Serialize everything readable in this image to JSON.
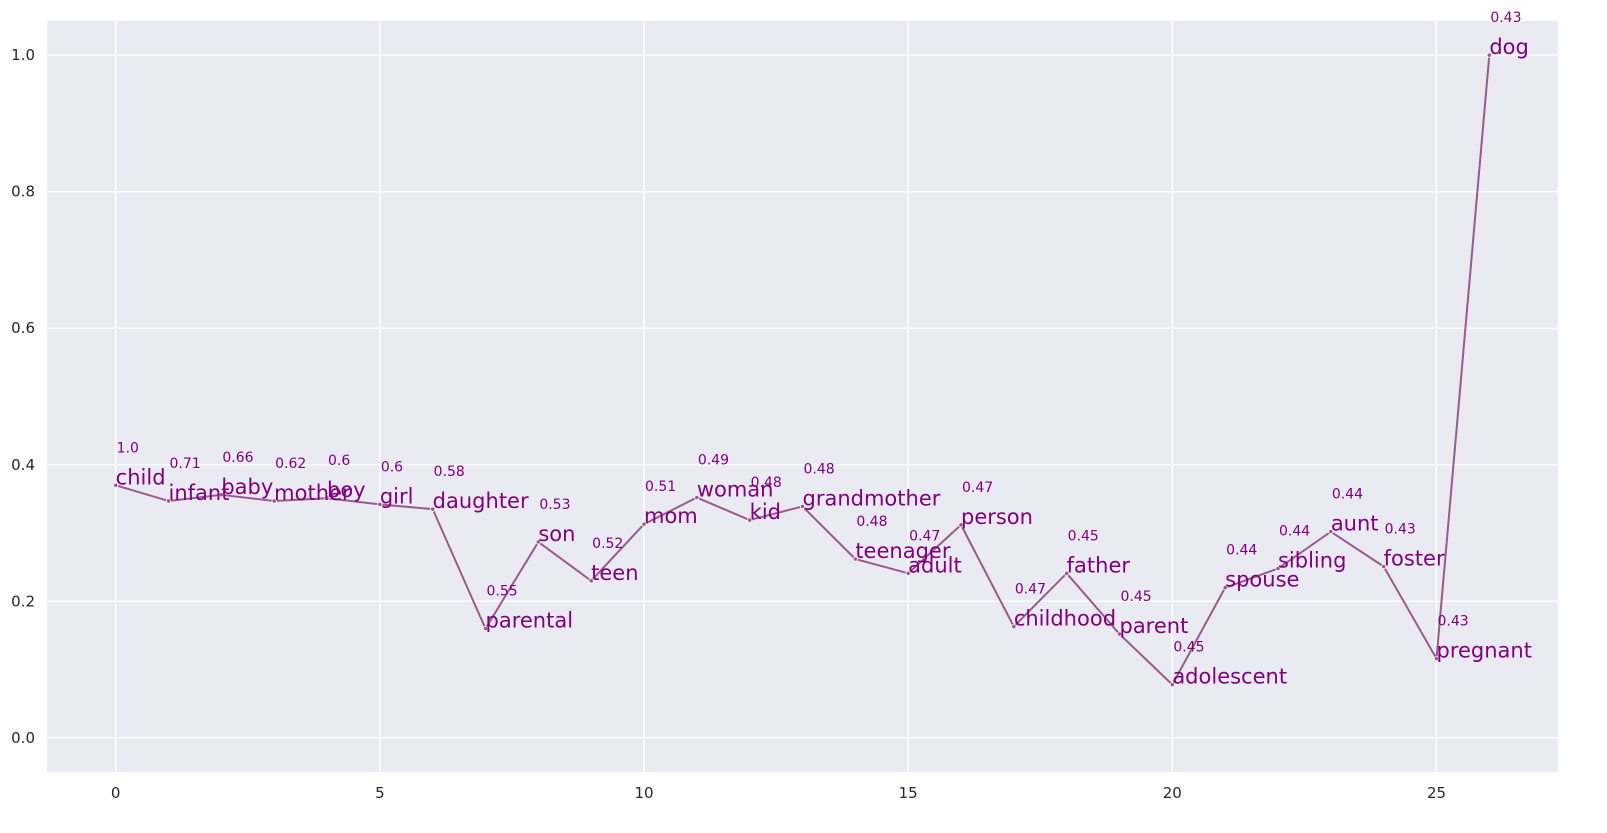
{
  "chart_data": {
    "type": "line",
    "title": "",
    "xlabel": "",
    "ylabel": "",
    "xlim": [
      -1.3,
      27.3
    ],
    "ylim": [
      -0.05,
      1.05
    ],
    "x_ticks": [
      0,
      5,
      10,
      15,
      20,
      25
    ],
    "y_ticks": [
      0.0,
      0.2,
      0.4,
      0.6,
      0.8,
      1.0
    ],
    "x_tick_labels": [
      "0",
      "5",
      "10",
      "15",
      "20",
      "25"
    ],
    "y_tick_labels": [
      "0.0",
      "0.2",
      "0.4",
      "0.6",
      "0.8",
      "1.0"
    ],
    "grid": true,
    "colors": {
      "background": "#eaeaf2",
      "grid": "#ffffff",
      "line": "#9a5a8e",
      "text": "#800080"
    },
    "points": [
      {
        "x": 0,
        "y": 0.37,
        "word": "child",
        "similarity": "1.0"
      },
      {
        "x": 1,
        "y": 0.347,
        "word": "infant",
        "similarity": "0.71"
      },
      {
        "x": 2,
        "y": 0.356,
        "word": "baby",
        "similarity": "0.66"
      },
      {
        "x": 3,
        "y": 0.347,
        "word": "mother",
        "similarity": "0.62"
      },
      {
        "x": 4,
        "y": 0.351,
        "word": "boy",
        "similarity": "0.6"
      },
      {
        "x": 5,
        "y": 0.342,
        "word": "girl",
        "similarity": "0.6"
      },
      {
        "x": 6,
        "y": 0.335,
        "word": "daughter",
        "similarity": "0.58"
      },
      {
        "x": 7,
        "y": 0.16,
        "word": "parental",
        "similarity": "0.55"
      },
      {
        "x": 8,
        "y": 0.287,
        "word": "son",
        "similarity": "0.53"
      },
      {
        "x": 9,
        "y": 0.23,
        "word": "teen",
        "similarity": "0.52"
      },
      {
        "x": 10,
        "y": 0.313,
        "word": "mom",
        "similarity": "0.51"
      },
      {
        "x": 11,
        "y": 0.352,
        "word": "woman",
        "similarity": "0.49"
      },
      {
        "x": 12,
        "y": 0.319,
        "word": "kid",
        "similarity": "0.48"
      },
      {
        "x": 13,
        "y": 0.339,
        "word": "grandmother",
        "similarity": "0.48"
      },
      {
        "x": 14,
        "y": 0.262,
        "word": "teenager",
        "similarity": "0.48"
      },
      {
        "x": 15,
        "y": 0.241,
        "word": "adult",
        "similarity": "0.47"
      },
      {
        "x": 16,
        "y": 0.312,
        "word": "person",
        "similarity": "0.47"
      },
      {
        "x": 17,
        "y": 0.163,
        "word": "childhood",
        "similarity": "0.47"
      },
      {
        "x": 18,
        "y": 0.241,
        "word": "father",
        "similarity": "0.45"
      },
      {
        "x": 19,
        "y": 0.152,
        "word": "parent",
        "similarity": "0.45"
      },
      {
        "x": 20,
        "y": 0.078,
        "word": "adolescent",
        "similarity": "0.45"
      },
      {
        "x": 21,
        "y": 0.22,
        "word": "spouse",
        "similarity": "0.44"
      },
      {
        "x": 22,
        "y": 0.248,
        "word": "sibling",
        "similarity": "0.44"
      },
      {
        "x": 23,
        "y": 0.302,
        "word": "aunt",
        "similarity": "0.44"
      },
      {
        "x": 24,
        "y": 0.251,
        "word": "foster",
        "similarity": "0.43"
      },
      {
        "x": 25,
        "y": 0.116,
        "word": "pregnant",
        "similarity": "0.43"
      },
      {
        "x": 26,
        "y": 1.0,
        "word": "dog",
        "similarity": "0.43"
      }
    ]
  }
}
